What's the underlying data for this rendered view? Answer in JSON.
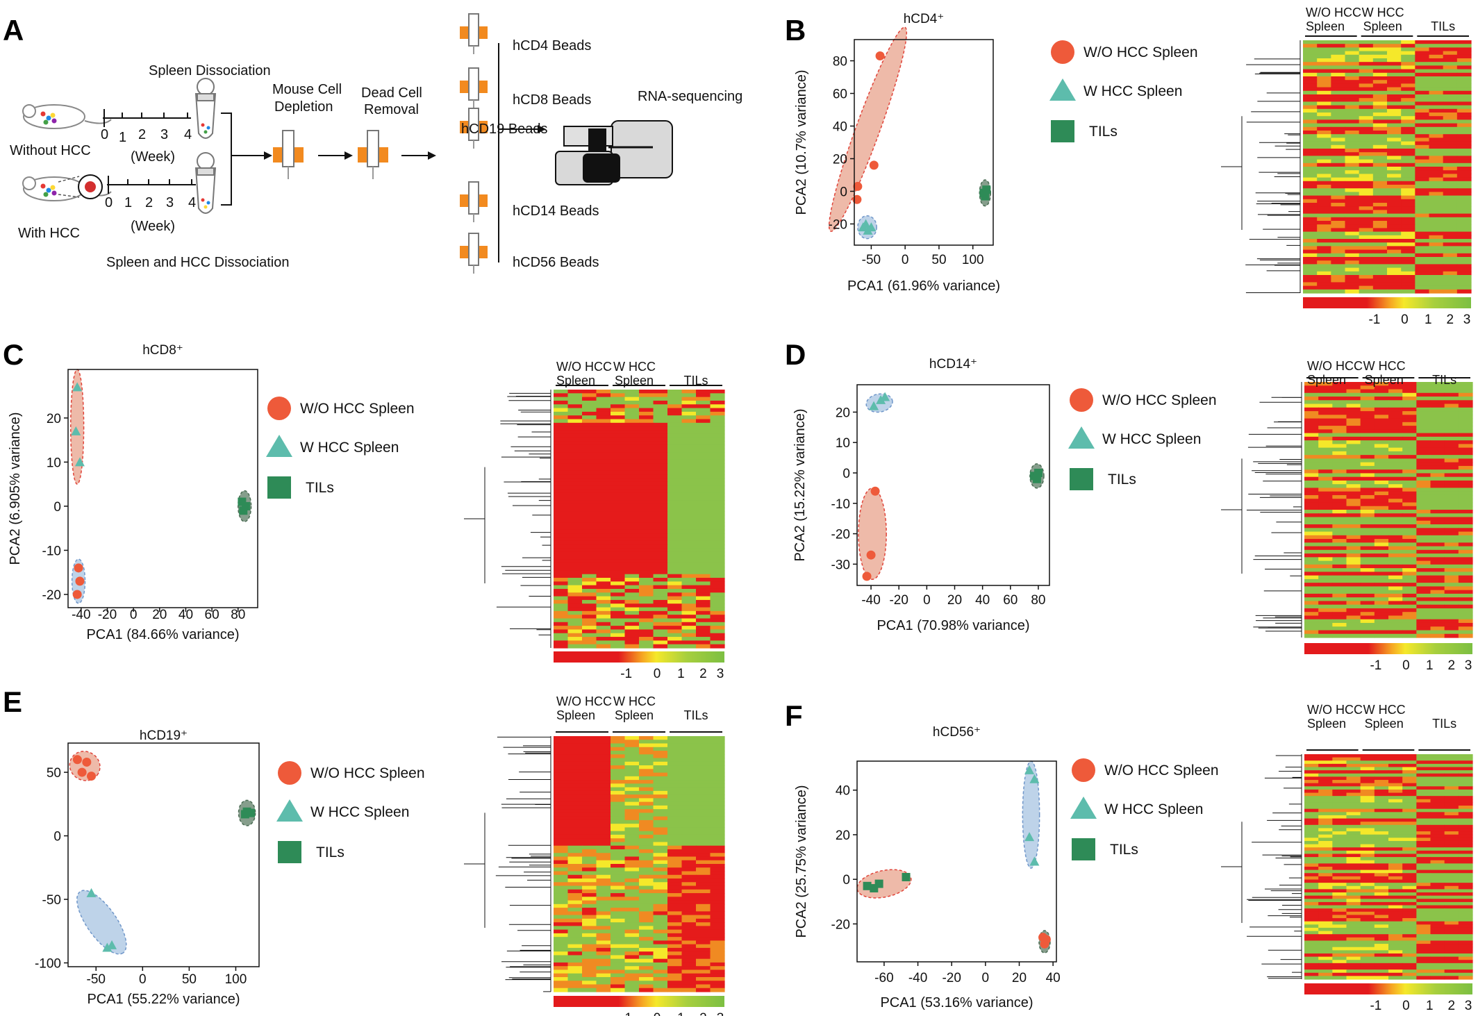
{
  "figure": {
    "panel_letters": [
      "A",
      "B",
      "C",
      "D",
      "E",
      "F"
    ]
  },
  "colors": {
    "red_group": "#ee5a3a",
    "teal_group": "#5dbcac",
    "green_group": "#2e8b57",
    "red_ellipse_fill": "#e8a38c",
    "blue_ellipse_fill": "#a8c4e2",
    "grey_ellipse_fill": "#5d7d66",
    "heat_red": "#e51b1b",
    "heat_yellow": "#f5e82a",
    "heat_green": "#8bc34a",
    "device_orange": "#f28a1f"
  },
  "workflow": {
    "without_hcc": "Without HCC",
    "with_hcc": "With HCC",
    "timeline_ticks": [
      "0",
      "1",
      "2",
      "3",
      "4"
    ],
    "week_label": "(Week)",
    "spleen_dissociation": "Spleen Dissociation",
    "spleen_hcc_dissociation": "Spleen and HCC Dissociation",
    "mouse_depletion": [
      "Mouse Cell",
      "Depletion"
    ],
    "dead_cell_removal": [
      "Dead Cell",
      "Removal"
    ],
    "beads": [
      "hCD4 Beads",
      "hCD8 Beads",
      "hCD19 Beads",
      "hCD14 Beads",
      "hCD56 Beads"
    ],
    "rna_seq": "RNA-sequencing"
  },
  "legend": {
    "items": [
      "W/O HCC Spleen",
      "W HCC Spleen",
      "TILs"
    ]
  },
  "heatmap_header": {
    "group1": [
      "W/O HCC",
      "Spleen"
    ],
    "group2": [
      "W HCC",
      "Spleen"
    ],
    "group3": "TILs",
    "scale_ticks": [
      "-1",
      "0",
      "1",
      "2",
      "3"
    ]
  },
  "chart_data": [
    {
      "panel": "B",
      "type": "scatter",
      "title": "hCD4⁺",
      "xlabel": "PCA1 (61.96% variance)",
      "ylabel": "PCA2 (10.7% variance)",
      "xlim": [
        -75,
        130
      ],
      "ylim": [
        -33,
        93
      ],
      "xticks": [
        -50,
        0,
        50,
        100
      ],
      "yticks": [
        -20,
        0,
        20,
        40,
        60,
        80
      ],
      "xtick_labels": [
        "-50",
        "0",
        "50",
        "100"
      ],
      "ytick_labels": [
        "-20",
        "0",
        "20",
        "40",
        "60",
        "80"
      ],
      "series": [
        {
          "name": "W/O HCC Spleen",
          "x": [
            -37,
            -46,
            -70,
            -71
          ],
          "y": [
            83,
            16,
            3,
            -5
          ]
        },
        {
          "name": "W HCC Spleen",
          "x": [
            -62,
            -55,
            -50,
            -58
          ],
          "y": [
            -22,
            -24,
            -22,
            -20
          ]
        },
        {
          "name": "TILs",
          "x": [
            116,
            120,
            118
          ],
          "y": [
            -1,
            1,
            -3
          ]
        }
      ],
      "ellipses": [
        {
          "cx": -55,
          "cy": 38,
          "rx": 70,
          "ry": 14,
          "rot": -70
        },
        {
          "cx": -56,
          "cy": -22,
          "rx": 14,
          "ry": 7,
          "rot": 0
        },
        {
          "cx": 118,
          "cy": -1,
          "rx": 8,
          "ry": 8,
          "rot": 0
        }
      ]
    },
    {
      "panel": "C",
      "type": "scatter",
      "title": "hCD8⁺",
      "xlabel": "PCA1 (84.66% variance)",
      "ylabel": "PCA2 (6.905% variance)",
      "xlim": [
        -50,
        95
      ],
      "ylim": [
        -23,
        31
      ],
      "xticks": [
        -40,
        -20,
        0,
        20,
        40,
        60,
        80
      ],
      "yticks": [
        -20,
        -10,
        0,
        10,
        20
      ],
      "xtick_labels": [
        "-40",
        "-20",
        "0",
        "20",
        "40",
        "60",
        "80"
      ],
      "ytick_labels": [
        "-20",
        "-10",
        "0",
        "10",
        "20"
      ],
      "series": [
        {
          "name": "W/O HCC Spleen",
          "x": [
            -42,
            -41,
            -43
          ],
          "y": [
            -14,
            -17,
            -20
          ]
        },
        {
          "name": "W HCC Spleen",
          "x": [
            -43,
            -44,
            -41
          ],
          "y": [
            27,
            17,
            10
          ]
        },
        {
          "name": "TILs",
          "x": [
            83,
            86,
            84
          ],
          "y": [
            1,
            0,
            -1
          ]
        }
      ],
      "ellipses": [
        {
          "cx": -43,
          "cy": 18,
          "rx": 5,
          "ry": 13,
          "rot": 0
        },
        {
          "cx": -42,
          "cy": -17,
          "rx": 5,
          "ry": 5,
          "rot": 0
        },
        {
          "cx": 85,
          "cy": 0,
          "rx": 5,
          "ry": 3.5,
          "rot": 0
        }
      ]
    },
    {
      "panel": "D",
      "type": "scatter",
      "title": "hCD14⁺",
      "xlabel": "PCA1 (70.98% variance)",
      "ylabel": "PCA2 (15.22% variance)",
      "xlim": [
        -50,
        88
      ],
      "ylim": [
        -37,
        29
      ],
      "xticks": [
        -40,
        -20,
        0,
        20,
        40,
        60,
        80
      ],
      "yticks": [
        -30,
        -20,
        -10,
        0,
        10,
        20
      ],
      "xtick_labels": [
        "-40",
        "-20",
        "0",
        "20",
        "40",
        "60",
        "80"
      ],
      "ytick_labels": [
        "-30",
        "-20",
        "-10",
        "0",
        "10",
        "20"
      ],
      "series": [
        {
          "name": "W/O HCC Spleen",
          "x": [
            -37,
            -40,
            -43
          ],
          "y": [
            -6,
            -27,
            -34
          ]
        },
        {
          "name": "W HCC Spleen",
          "x": [
            -38,
            -33,
            -30
          ],
          "y": [
            22,
            24,
            25
          ]
        },
        {
          "name": "TILs",
          "x": [
            77,
            80,
            79
          ],
          "y": [
            -1,
            0,
            -2
          ]
        }
      ],
      "ellipses": [
        {
          "cx": -39,
          "cy": -20,
          "rx": 10,
          "ry": 15,
          "rot": 0
        },
        {
          "cx": -34,
          "cy": 23,
          "rx": 9,
          "ry": 3,
          "rot": -10
        },
        {
          "cx": 79,
          "cy": -1,
          "rx": 5,
          "ry": 4,
          "rot": 0
        }
      ]
    },
    {
      "panel": "E",
      "type": "scatter",
      "title": "hCD19⁺",
      "xlabel": "PCA1 (55.22% variance)",
      "ylabel": "",
      "xlim": [
        -80,
        125
      ],
      "ylim": [
        -103,
        73
      ],
      "xticks": [
        -50,
        0,
        50,
        100
      ],
      "yticks": [
        -100,
        -50,
        0,
        50
      ],
      "xtick_labels": [
        "-50",
        "0",
        "50",
        "100"
      ],
      "ytick_labels": [
        "-100",
        "-50",
        "0",
        "50"
      ],
      "series": [
        {
          "name": "W/O HCC Spleen",
          "x": [
            -70,
            -60,
            -65,
            -55
          ],
          "y": [
            60,
            58,
            50,
            47
          ]
        },
        {
          "name": "W HCC Spleen",
          "x": [
            -55,
            -38,
            -33
          ],
          "y": [
            -45,
            -88,
            -86
          ]
        },
        {
          "name": "TILs",
          "x": [
            112,
            116,
            110
          ],
          "y": [
            19,
            18,
            17
          ]
        }
      ],
      "ellipses": [
        {
          "cx": -62,
          "cy": 55,
          "rx": 15,
          "ry": 12,
          "rot": 30
        },
        {
          "cx": -44,
          "cy": -68,
          "rx": 32,
          "ry": 14,
          "rot": 55
        },
        {
          "cx": 112,
          "cy": 18,
          "rx": 9,
          "ry": 10,
          "rot": 0
        }
      ]
    },
    {
      "panel": "F",
      "type": "scatter",
      "title": "hCD56⁺",
      "xlabel": "PCA1 (53.16% variance)",
      "ylabel": "PCA2 (25.75% variance)",
      "xlim": [
        -76,
        42
      ],
      "ylim": [
        -37,
        53
      ],
      "xticks": [
        -60,
        -40,
        -20,
        0,
        20,
        40
      ],
      "yticks": [
        -20,
        0,
        20,
        40
      ],
      "xtick_labels": [
        "-60",
        "-40",
        "-20",
        "0",
        "20",
        "40"
      ],
      "ytick_labels": [
        "-20",
        "0",
        "20",
        "40"
      ],
      "series": [
        {
          "name": "W/O HCC Spleen",
          "x": [
            34,
            36,
            35
          ],
          "y": [
            -26,
            -27,
            -29
          ]
        },
        {
          "name": "W HCC Spleen",
          "x": [
            26,
            29,
            26,
            29
          ],
          "y": [
            49,
            45,
            19,
            8
          ]
        },
        {
          "name": "TILs",
          "x": [
            -70,
            -66,
            -63,
            -47
          ],
          "y": [
            -3,
            -4,
            -2,
            1
          ]
        }
      ],
      "ellipses": [
        {
          "cx": -60,
          "cy": -2,
          "rx": 16,
          "ry": 6,
          "rot": -12
        },
        {
          "cx": 27,
          "cy": 29,
          "rx": 5,
          "ry": 24,
          "rot": 0
        },
        {
          "cx": 35,
          "cy": -28,
          "rx": 3,
          "ry": 5,
          "rot": 0
        }
      ]
    }
  ]
}
